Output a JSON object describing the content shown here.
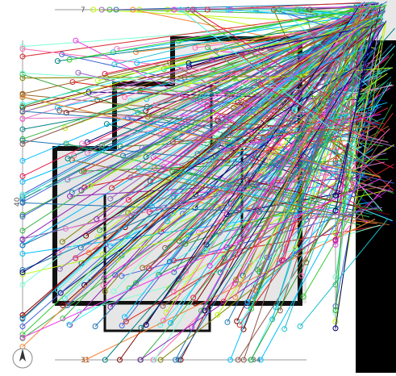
{
  "image": {
    "description_kind": "floor-plan-with-keypoint-match-lines",
    "colors": {
      "background": "#ffffff",
      "wall": "#111111",
      "floor": "#e6e6e6",
      "panel": "#000000",
      "dimension_line": "#777777"
    },
    "icons": [
      "north-arrow-icon"
    ]
  },
  "dimension_labels": {
    "top_left": "7",
    "top_mid": "34",
    "left_mid": "40",
    "bottom_left": "31",
    "bottom_mid": "34"
  },
  "match_lines": {
    "count": 420,
    "palette": [
      "#e6194b",
      "#3cb44b",
      "#4363d8",
      "#f58231",
      "#911eb4",
      "#46f0f0",
      "#f032e6",
      "#bcf60c",
      "#008080",
      "#9a6324",
      "#800000",
      "#808000",
      "#000075",
      "#1f77b4",
      "#2ca02c",
      "#d62728",
      "#9467bd",
      "#8c564b",
      "#e377c2",
      "#17becf",
      "#7fffd4",
      "#ff69b4",
      "#00bfff",
      "#32cd32"
    ]
  }
}
